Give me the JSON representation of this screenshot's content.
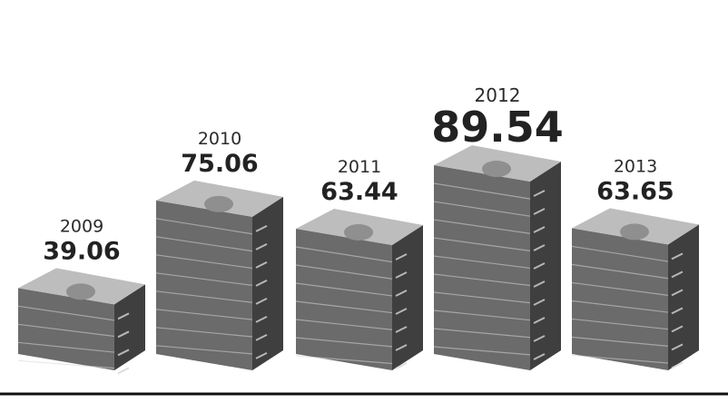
{
  "chart_data": {
    "type": "bar",
    "categories": [
      "2009",
      "2010",
      "2011",
      "2012",
      "2013"
    ],
    "values": [
      39.06,
      75.06,
      63.44,
      89.54,
      63.65
    ],
    "data_labels": [
      "39.06",
      "75.06",
      "63.44",
      "89.54",
      "63.65"
    ],
    "highlight_index": 3,
    "title": "",
    "xlabel": "",
    "ylabel": "",
    "ylim": [
      0,
      100
    ],
    "grid": false,
    "legend": "none",
    "bar_style": "stacked-banknote-bundles"
  },
  "colors": {
    "background": "#ffffff",
    "bundle_top": "#bdbdbd",
    "bundle_face": "#6b6b6b",
    "bundle_side": "#3f3f3f",
    "banknote_edge": "#d6d6d6",
    "text": "#222222",
    "baseline": "#111111"
  }
}
